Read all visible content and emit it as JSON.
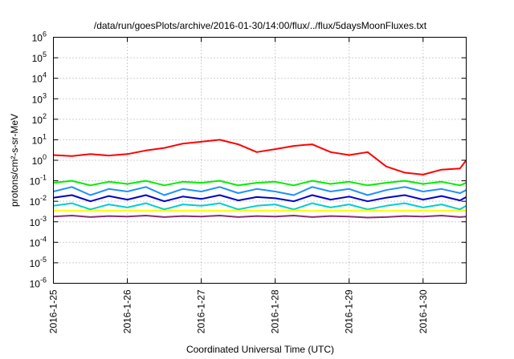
{
  "chart_data": {
    "type": "line",
    "title": "/data/run/goesPlots/archive/2016-01-30/14:00/flux/../flux/5daysMoonFluxes.txt",
    "xlabel": "Coordinated Universal Time (UTC)",
    "ylabel": "protons/cm²-s-sr-MeV",
    "y_scale": "log",
    "ylim": [
      1e-06,
      1000000.0
    ],
    "xlim": [
      "2016-01-25T00:00",
      "2016-01-30T14:00"
    ],
    "grid": true,
    "legend": "none",
    "x_ticks": [
      "2016-1-25",
      "2016-1-26",
      "2016-1-27",
      "2016-1-28",
      "2016-1-29",
      "2016-1-30"
    ],
    "y_ticks": [
      {
        "base": "10",
        "exp": "-6"
      },
      {
        "base": "10",
        "exp": "-5"
      },
      {
        "base": "10",
        "exp": "-4"
      },
      {
        "base": "10",
        "exp": "-3"
      },
      {
        "base": "10",
        "exp": "-2"
      },
      {
        "base": "10",
        "exp": "-1"
      },
      {
        "base": "10",
        "exp": "0"
      },
      {
        "base": "10",
        "exp": "1"
      },
      {
        "base": "10",
        "exp": "2"
      },
      {
        "base": "10",
        "exp": "3"
      },
      {
        "base": "10",
        "exp": "4"
      },
      {
        "base": "10",
        "exp": "5"
      },
      {
        "base": "10",
        "exp": "6"
      }
    ],
    "series": [
      {
        "color": "#ff0000",
        "x": [
          "2016-01-25T00:00",
          "2016-01-25T06:00",
          "2016-01-25T12:00",
          "2016-01-25T18:00",
          "2016-01-26T00:00",
          "2016-01-26T06:00",
          "2016-01-26T12:00",
          "2016-01-26T18:00",
          "2016-01-27T00:00",
          "2016-01-27T06:00",
          "2016-01-27T12:00",
          "2016-01-27T18:00",
          "2016-01-28T00:00",
          "2016-01-28T06:00",
          "2016-01-28T12:00",
          "2016-01-28T18:00",
          "2016-01-29T00:00",
          "2016-01-29T06:00",
          "2016-01-29T12:00",
          "2016-01-29T18:00",
          "2016-01-30T00:00",
          "2016-01-30T06:00",
          "2016-01-30T12:00",
          "2016-01-30T14:00"
        ],
        "values": [
          1.8,
          1.6,
          2.0,
          1.7,
          2.0,
          3.0,
          4.0,
          6.5,
          8.0,
          10.0,
          6.0,
          2.5,
          3.5,
          5.0,
          6.0,
          2.5,
          1.8,
          2.5,
          0.5,
          0.25,
          0.2,
          0.35,
          0.4,
          1.0
        ]
      },
      {
        "color": "#00ee00",
        "x": [
          "2016-01-25T00:00",
          "2016-01-25T06:00",
          "2016-01-25T12:00",
          "2016-01-25T18:00",
          "2016-01-26T00:00",
          "2016-01-26T06:00",
          "2016-01-26T12:00",
          "2016-01-26T18:00",
          "2016-01-27T00:00",
          "2016-01-27T06:00",
          "2016-01-27T12:00",
          "2016-01-27T18:00",
          "2016-01-28T00:00",
          "2016-01-28T06:00",
          "2016-01-28T12:00",
          "2016-01-28T18:00",
          "2016-01-29T00:00",
          "2016-01-29T06:00",
          "2016-01-29T12:00",
          "2016-01-29T18:00",
          "2016-01-30T00:00",
          "2016-01-30T06:00",
          "2016-01-30T12:00",
          "2016-01-30T14:00"
        ],
        "values": [
          0.08,
          0.1,
          0.06,
          0.09,
          0.07,
          0.1,
          0.06,
          0.09,
          0.08,
          0.1,
          0.06,
          0.08,
          0.09,
          0.06,
          0.1,
          0.07,
          0.09,
          0.06,
          0.08,
          0.1,
          0.07,
          0.09,
          0.06,
          0.08
        ]
      },
      {
        "color": "#1e90ff",
        "x": [
          "2016-01-25T00:00",
          "2016-01-25T06:00",
          "2016-01-25T12:00",
          "2016-01-25T18:00",
          "2016-01-26T00:00",
          "2016-01-26T06:00",
          "2016-01-26T12:00",
          "2016-01-26T18:00",
          "2016-01-27T00:00",
          "2016-01-27T06:00",
          "2016-01-27T12:00",
          "2016-01-27T18:00",
          "2016-01-28T00:00",
          "2016-01-28T06:00",
          "2016-01-28T12:00",
          "2016-01-28T18:00",
          "2016-01-29T00:00",
          "2016-01-29T06:00",
          "2016-01-29T12:00",
          "2016-01-29T18:00",
          "2016-01-30T00:00",
          "2016-01-30T06:00",
          "2016-01-30T12:00",
          "2016-01-30T14:00"
        ],
        "values": [
          0.03,
          0.05,
          0.02,
          0.04,
          0.03,
          0.05,
          0.02,
          0.04,
          0.03,
          0.05,
          0.025,
          0.04,
          0.03,
          0.02,
          0.05,
          0.03,
          0.04,
          0.02,
          0.035,
          0.05,
          0.03,
          0.04,
          0.025,
          0.035
        ]
      },
      {
        "color": "#0000cd",
        "x": [
          "2016-01-25T00:00",
          "2016-01-25T06:00",
          "2016-01-25T12:00",
          "2016-01-25T18:00",
          "2016-01-26T00:00",
          "2016-01-26T06:00",
          "2016-01-26T12:00",
          "2016-01-26T18:00",
          "2016-01-27T00:00",
          "2016-01-27T06:00",
          "2016-01-27T12:00",
          "2016-01-27T18:00",
          "2016-01-28T00:00",
          "2016-01-28T06:00",
          "2016-01-28T12:00",
          "2016-01-28T18:00",
          "2016-01-29T00:00",
          "2016-01-29T06:00",
          "2016-01-29T12:00",
          "2016-01-29T18:00",
          "2016-01-30T00:00",
          "2016-01-30T06:00",
          "2016-01-30T12:00",
          "2016-01-30T14:00"
        ],
        "values": [
          0.015,
          0.02,
          0.01,
          0.018,
          0.012,
          0.02,
          0.01,
          0.017,
          0.013,
          0.02,
          0.011,
          0.016,
          0.014,
          0.01,
          0.02,
          0.012,
          0.017,
          0.01,
          0.015,
          0.02,
          0.012,
          0.018,
          0.011,
          0.016
        ]
      },
      {
        "color": "#00ced1",
        "x": [
          "2016-01-25T00:00",
          "2016-01-25T06:00",
          "2016-01-25T12:00",
          "2016-01-25T18:00",
          "2016-01-26T00:00",
          "2016-01-26T06:00",
          "2016-01-26T12:00",
          "2016-01-26T18:00",
          "2016-01-27T00:00",
          "2016-01-27T06:00",
          "2016-01-27T12:00",
          "2016-01-27T18:00",
          "2016-01-28T00:00",
          "2016-01-28T06:00",
          "2016-01-28T12:00",
          "2016-01-28T18:00",
          "2016-01-29T00:00",
          "2016-01-29T06:00",
          "2016-01-29T12:00",
          "2016-01-29T18:00",
          "2016-01-30T00:00",
          "2016-01-30T06:00",
          "2016-01-30T12:00",
          "2016-01-30T14:00"
        ],
        "values": [
          0.006,
          0.008,
          0.004,
          0.007,
          0.005,
          0.008,
          0.004,
          0.007,
          0.006,
          0.008,
          0.004,
          0.006,
          0.007,
          0.004,
          0.008,
          0.005,
          0.007,
          0.004,
          0.006,
          0.008,
          0.005,
          0.007,
          0.004,
          0.006
        ]
      },
      {
        "color": "#ffff00",
        "x": [
          "2016-01-25T00:00",
          "2016-01-25T06:00",
          "2016-01-25T12:00",
          "2016-01-25T18:00",
          "2016-01-26T00:00",
          "2016-01-26T06:00",
          "2016-01-26T12:00",
          "2016-01-26T18:00",
          "2016-01-27T00:00",
          "2016-01-27T06:00",
          "2016-01-27T12:00",
          "2016-01-27T18:00",
          "2016-01-28T00:00",
          "2016-01-28T06:00",
          "2016-01-28T12:00",
          "2016-01-28T18:00",
          "2016-01-29T00:00",
          "2016-01-29T06:00",
          "2016-01-29T12:00",
          "2016-01-29T18:00",
          "2016-01-30T00:00",
          "2016-01-30T06:00",
          "2016-01-30T12:00",
          "2016-01-30T14:00"
        ],
        "values": [
          0.0035,
          0.0035,
          0.0034,
          0.0035,
          0.0035,
          0.0035,
          0.0034,
          0.0035,
          0.0035,
          0.0035,
          0.0034,
          0.0035,
          0.0035,
          0.0035,
          0.0034,
          0.0035,
          0.0035,
          0.0035,
          0.0034,
          0.0035,
          0.0035,
          0.0035,
          0.0034,
          0.0035
        ]
      },
      {
        "color": "#8b2f6b",
        "x": [
          "2016-01-25T00:00",
          "2016-01-25T06:00",
          "2016-01-25T12:00",
          "2016-01-25T18:00",
          "2016-01-26T00:00",
          "2016-01-26T06:00",
          "2016-01-26T12:00",
          "2016-01-26T18:00",
          "2016-01-27T00:00",
          "2016-01-27T06:00",
          "2016-01-27T12:00",
          "2016-01-27T18:00",
          "2016-01-28T00:00",
          "2016-01-28T06:00",
          "2016-01-28T12:00",
          "2016-01-28T18:00",
          "2016-01-29T00:00",
          "2016-01-29T06:00",
          "2016-01-29T12:00",
          "2016-01-29T18:00",
          "2016-01-30T00:00",
          "2016-01-30T06:00",
          "2016-01-30T12:00",
          "2016-01-30T14:00"
        ],
        "values": [
          0.0018,
          0.002,
          0.0017,
          0.0019,
          0.0018,
          0.002,
          0.0017,
          0.0019,
          0.0018,
          0.002,
          0.0017,
          0.0019,
          0.0018,
          0.002,
          0.0017,
          0.0019,
          0.0018,
          0.0016,
          0.0017,
          0.0019,
          0.0018,
          0.002,
          0.0017,
          0.0018
        ]
      }
    ]
  }
}
